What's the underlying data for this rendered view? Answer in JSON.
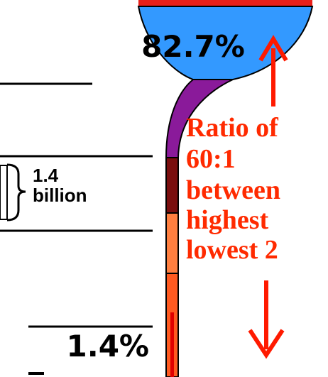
{
  "top_share": "82.7%",
  "population": [
    "1.4",
    "billion"
  ],
  "bottom_share": "1.4%",
  "ratio_note": [
    "Ratio of",
    "60:1",
    "between",
    "highest",
    "lowest 2"
  ]
}
